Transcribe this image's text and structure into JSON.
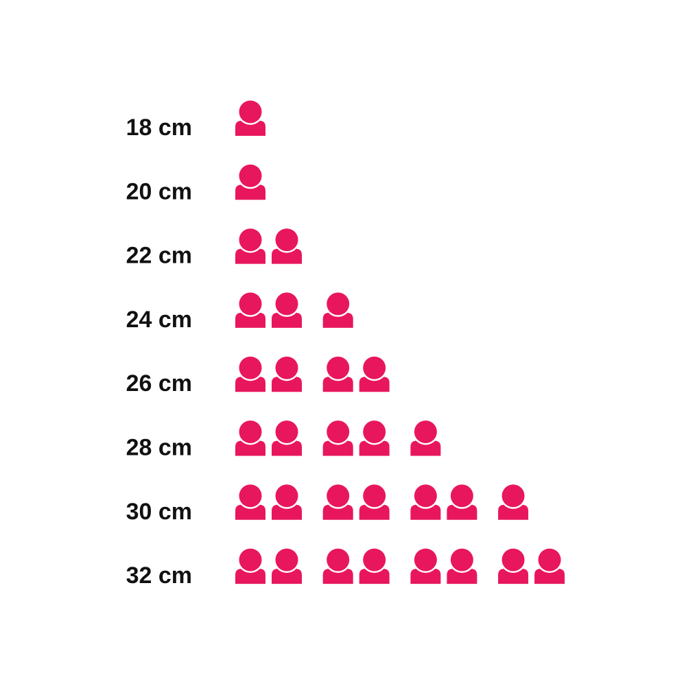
{
  "chart_data": {
    "type": "pictograph",
    "categories": [
      "18 cm",
      "20 cm",
      "22 cm",
      "24 cm",
      "26 cm",
      "28 cm",
      "30 cm",
      "32 cm"
    ],
    "values": [
      1,
      1,
      2,
      3,
      4,
      5,
      7,
      8
    ],
    "icon": "person-icon",
    "icon_color": "#E8175D",
    "icons_per_group": 2
  }
}
